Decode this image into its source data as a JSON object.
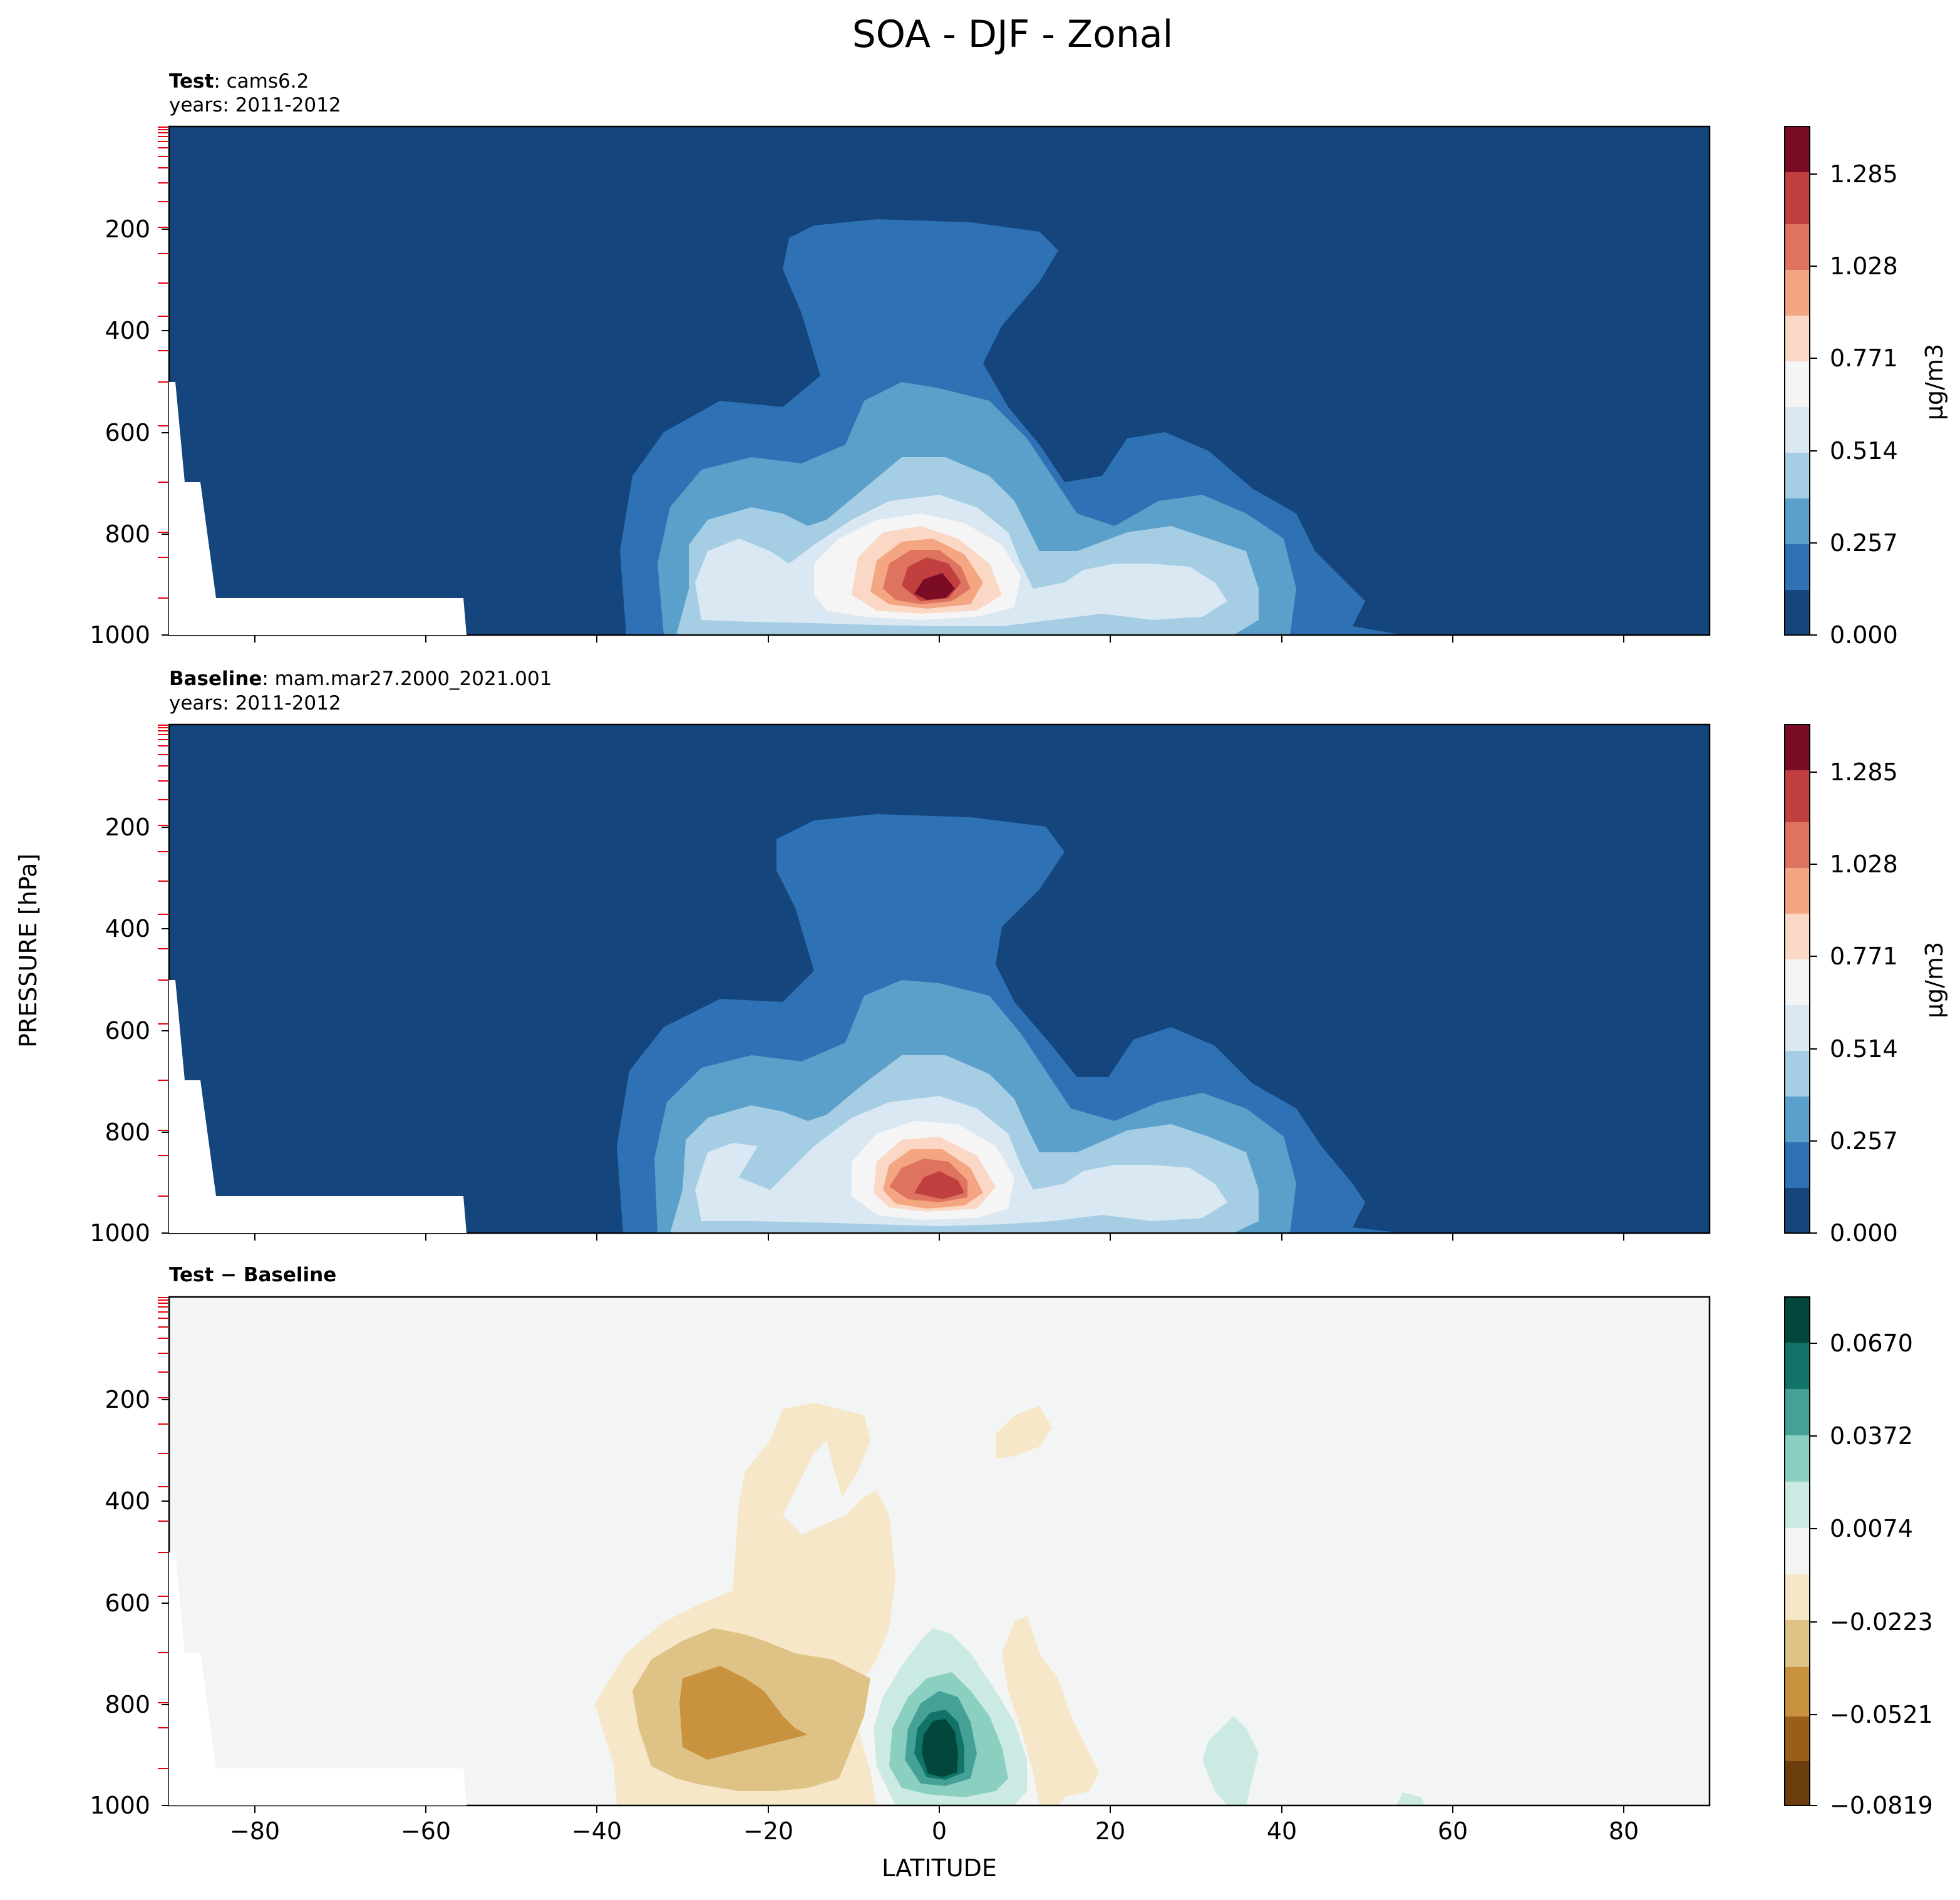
{
  "chart_data": {
    "type": "contour",
    "title": "SOA - DJF - Zonal",
    "xlabel": "LATITUDE",
    "ylabel": "PRESSURE [hPa]",
    "xlim": [
      -90,
      90
    ],
    "ylim": [
      1000,
      0
    ],
    "x_ticks": [
      "−80",
      "−60",
      "−40",
      "−20",
      "0",
      "20",
      "40",
      "60",
      "80"
    ],
    "y_ticks": [
      "200",
      "400",
      "600",
      "800",
      "1000"
    ],
    "panels": [
      {
        "title_bold": "Test",
        "title_rest": ": cams6.2",
        "subtitle": "years: 2011-2012",
        "colormap": "RdBu_r",
        "colorbar_label": "μg/m3",
        "colorbar_ticks": [
          "0.000",
          "0.257",
          "0.514",
          "0.771",
          "1.028",
          "1.285"
        ],
        "levels": [
          0.0,
          0.0857,
          0.1714,
          0.257,
          0.3427,
          0.4284,
          0.514,
          0.5997,
          0.6854,
          0.771,
          0.8567,
          0.9424,
          1.028,
          1.1137,
          1.1994,
          1.285,
          1.3707,
          1.4564
        ],
        "peak": {
          "lat": 1,
          "pressure": 880,
          "value": 1.4
        }
      },
      {
        "title_bold": "Baseline",
        "title_rest": ": mam.mar27.2000_2021.001",
        "subtitle": "years: 2011-2012",
        "colormap": "RdBu_r",
        "colorbar_label": "μg/m3",
        "colorbar_ticks": [
          "0.000",
          "0.257",
          "0.514",
          "0.771",
          "1.028",
          "1.285"
        ],
        "levels": [
          0.0,
          0.0857,
          0.1714,
          0.257,
          0.3427,
          0.4284,
          0.514,
          0.5997,
          0.6854,
          0.771,
          0.8567,
          0.9424,
          1.028,
          1.1137,
          1.1994,
          1.285,
          1.3707,
          1.4564
        ],
        "peak": {
          "lat": 1,
          "pressure": 900,
          "value": 1.35
        }
      },
      {
        "title_bold": "Test − Baseline",
        "title_rest": "",
        "subtitle": "",
        "colormap": "BrBG",
        "colorbar_label": "",
        "colorbar_ticks": [
          "−0.0819",
          "−0.0521",
          "−0.0223",
          "0.0074",
          "0.0372",
          "0.0670"
        ],
        "levels": [
          -0.0819,
          -0.067,
          -0.0521,
          -0.0372,
          -0.0223,
          -0.0074,
          0.0074,
          0.0223,
          0.0372,
          0.0521,
          0.067,
          0.0819
        ],
        "minimum": {
          "lat": -25,
          "pressure": 780,
          "value": -0.05
        },
        "maximum": {
          "lat": 1,
          "pressure": 830,
          "value": 0.078
        }
      }
    ]
  }
}
